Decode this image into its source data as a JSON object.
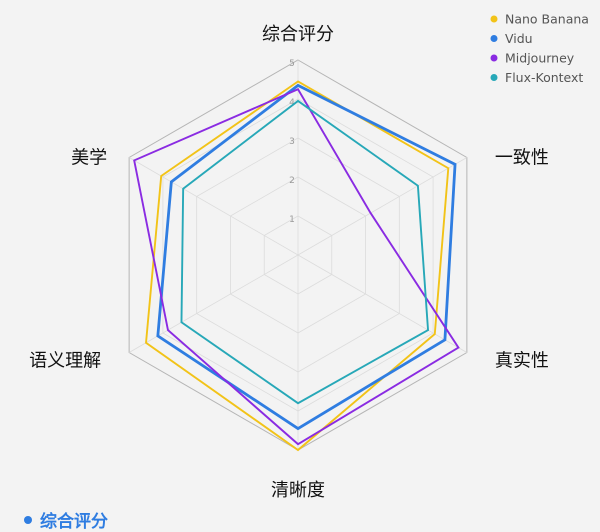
{
  "chart_data": {
    "type": "radar",
    "axes": [
      "综合评分",
      "一致性",
      "真实性",
      "清晰度",
      "语义理解",
      "美学"
    ],
    "rlim": [
      0,
      5
    ],
    "ticks": [
      1,
      2,
      3,
      4,
      5
    ],
    "grid": true,
    "legend_position": "top-right",
    "series": [
      {
        "name": "Nano Banana",
        "color": "#f2c318",
        "values": [
          4.45,
          4.45,
          4.05,
          5.0,
          4.5,
          4.05
        ]
      },
      {
        "name": "Vidu",
        "color": "#2f7de1",
        "values": [
          4.35,
          4.65,
          4.35,
          4.45,
          4.15,
          3.75
        ]
      },
      {
        "name": "Midjourney",
        "color": "#8a2be2",
        "values": [
          4.25,
          2.15,
          4.75,
          4.85,
          3.85,
          4.85
        ]
      },
      {
        "name": "Flux-Kontext",
        "color": "#27a8b8",
        "values": [
          3.95,
          3.55,
          3.85,
          3.8,
          3.45,
          3.4
        ]
      }
    ]
  },
  "footer": {
    "label": "综合评分",
    "color": "#2f7de1"
  }
}
